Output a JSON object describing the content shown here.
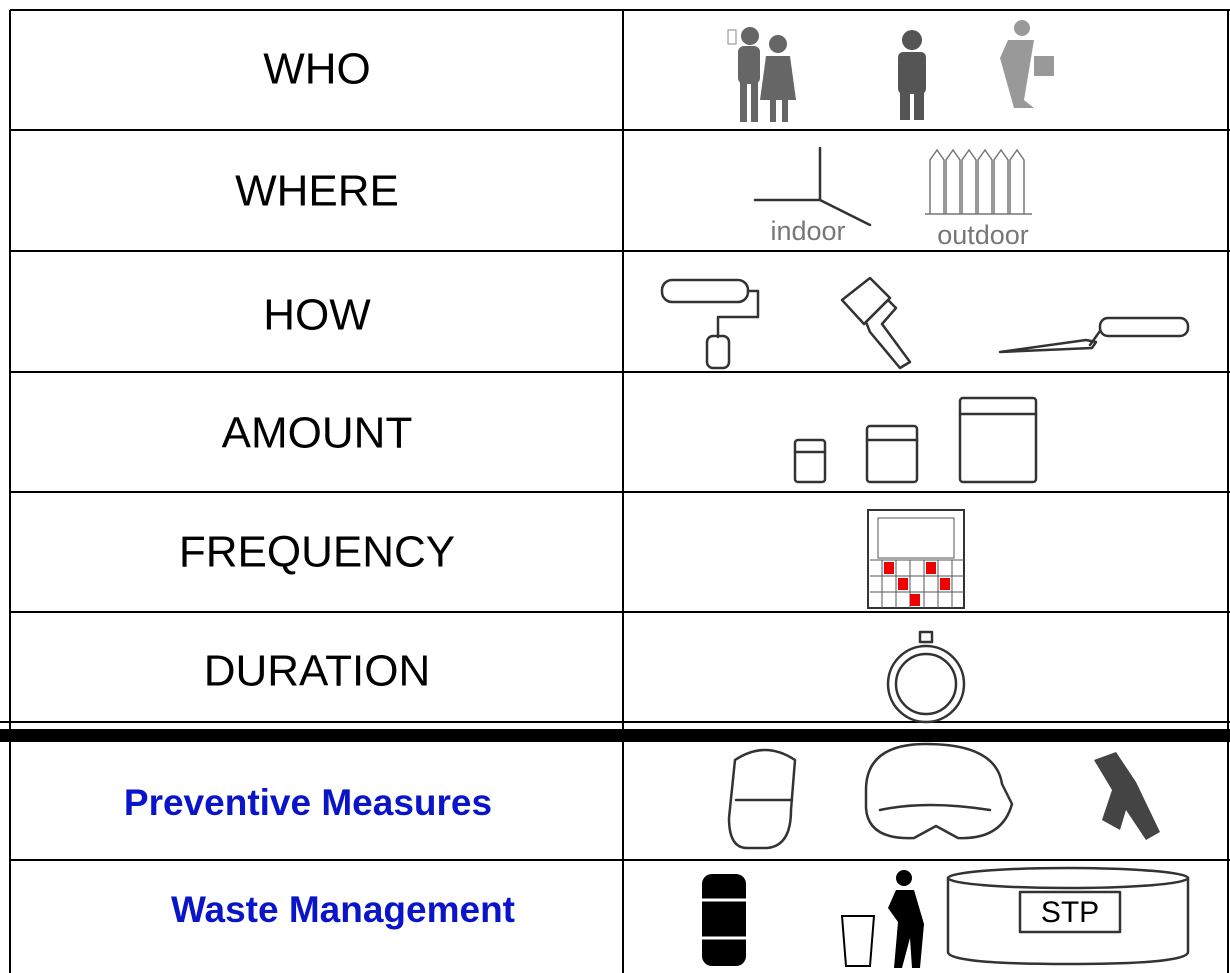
{
  "rows": [
    {
      "label": "WHO"
    },
    {
      "label": "WHERE",
      "captions": [
        "indoor",
        "outdoor"
      ]
    },
    {
      "label": "HOW"
    },
    {
      "label": "AMOUNT"
    },
    {
      "label": "FREQUENCY"
    },
    {
      "label": "DURATION"
    },
    {
      "label": "Preventive Measures"
    },
    {
      "label": "Waste Management",
      "captions": [
        "STP"
      ]
    }
  ]
}
